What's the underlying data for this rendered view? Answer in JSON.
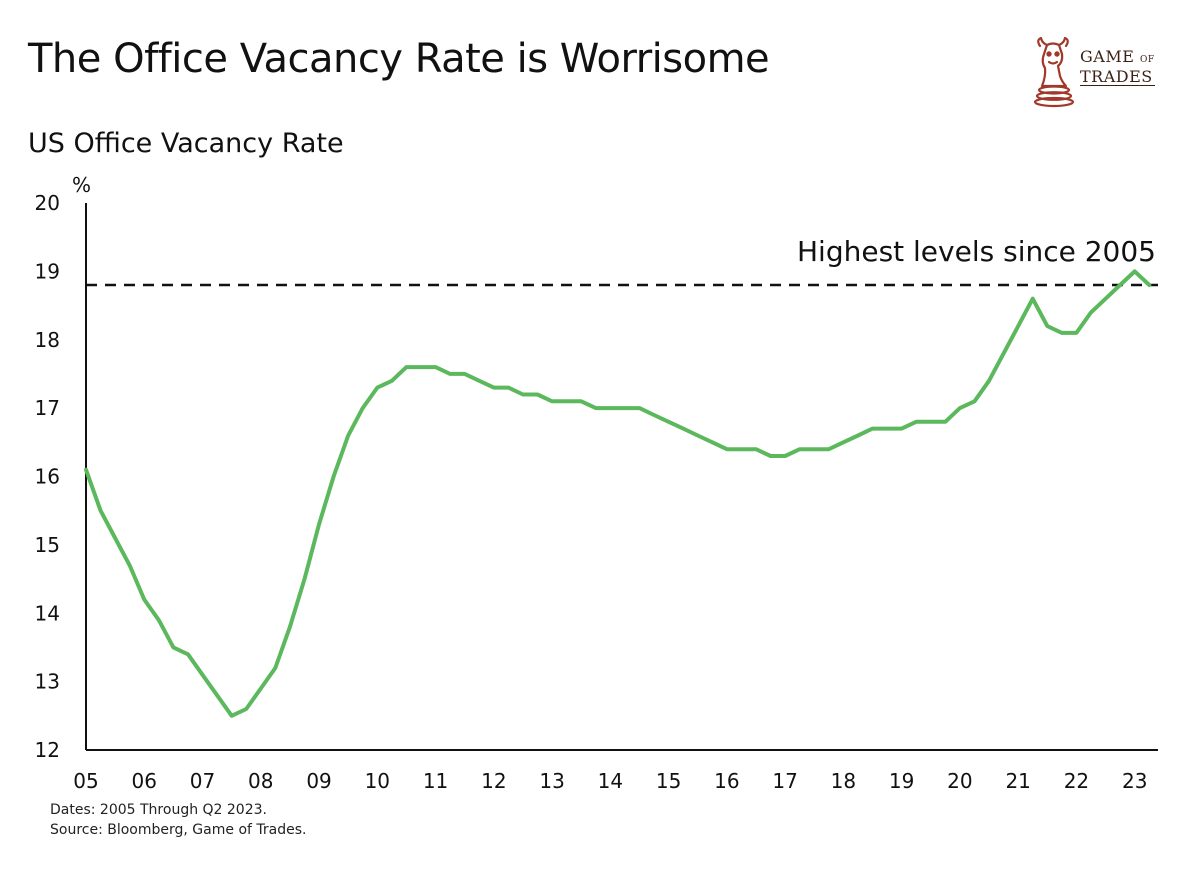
{
  "title": "The Office Vacancy Rate is Worrisome",
  "logo": {
    "line1": "Game",
    "line1_small": "of",
    "line2": "Trades",
    "icon": "bull-knight-icon"
  },
  "footnote": {
    "dates": "Dates: 2005 Through Q2 2023.",
    "source": "Source: Bloomberg, Game of Trades."
  },
  "colors": {
    "line": "#5cb85c",
    "axis": "#111111",
    "logo": "#a0392a"
  },
  "chart_data": {
    "type": "line",
    "title": "US Office Vacancy Rate",
    "ylabel": "%",
    "xlabel": "",
    "ylim": [
      12,
      20
    ],
    "xlim": [
      2005.0,
      2023.4
    ],
    "yticks": [
      12,
      13,
      14,
      15,
      16,
      17,
      18,
      19,
      20
    ],
    "xticks": [
      {
        "value": 2005,
        "label": "05"
      },
      {
        "value": 2006,
        "label": "06"
      },
      {
        "value": 2007,
        "label": "07"
      },
      {
        "value": 2008,
        "label": "08"
      },
      {
        "value": 2009,
        "label": "09"
      },
      {
        "value": 2010,
        "label": "10"
      },
      {
        "value": 2011,
        "label": "11"
      },
      {
        "value": 2012,
        "label": "12"
      },
      {
        "value": 2013,
        "label": "13"
      },
      {
        "value": 2014,
        "label": "14"
      },
      {
        "value": 2015,
        "label": "15"
      },
      {
        "value": 2016,
        "label": "16"
      },
      {
        "value": 2017,
        "label": "17"
      },
      {
        "value": 2018,
        "label": "18"
      },
      {
        "value": 2019,
        "label": "19"
      },
      {
        "value": 2020,
        "label": "20"
      },
      {
        "value": 2021,
        "label": "21"
      },
      {
        "value": 2022,
        "label": "22"
      },
      {
        "value": 2023,
        "label": "23"
      }
    ],
    "reference_line": {
      "value": 18.8,
      "style": "dashed",
      "label": "Highest levels since 2005"
    },
    "series": [
      {
        "name": "US Office Vacancy Rate",
        "x": [
          2005.0,
          2005.25,
          2005.5,
          2005.75,
          2006.0,
          2006.25,
          2006.5,
          2006.75,
          2007.0,
          2007.25,
          2007.5,
          2007.75,
          2008.0,
          2008.25,
          2008.5,
          2008.75,
          2009.0,
          2009.25,
          2009.5,
          2009.75,
          2010.0,
          2010.25,
          2010.5,
          2010.75,
          2011.0,
          2011.25,
          2011.5,
          2011.75,
          2012.0,
          2012.25,
          2012.5,
          2012.75,
          2013.0,
          2013.25,
          2013.5,
          2013.75,
          2014.0,
          2014.25,
          2014.5,
          2014.75,
          2015.0,
          2015.25,
          2015.5,
          2015.75,
          2016.0,
          2016.25,
          2016.5,
          2016.75,
          2017.0,
          2017.25,
          2017.5,
          2017.75,
          2018.0,
          2018.25,
          2018.5,
          2018.75,
          2019.0,
          2019.25,
          2019.5,
          2019.75,
          2020.0,
          2020.25,
          2020.5,
          2020.75,
          2021.0,
          2021.25,
          2021.5,
          2021.75,
          2022.0,
          2022.25,
          2022.5,
          2022.75,
          2023.0,
          2023.25
        ],
        "values": [
          16.1,
          15.5,
          15.1,
          14.7,
          14.2,
          13.9,
          13.5,
          13.4,
          13.1,
          12.8,
          12.5,
          12.6,
          12.9,
          13.2,
          13.8,
          14.5,
          15.3,
          16.0,
          16.6,
          17.0,
          17.3,
          17.4,
          17.6,
          17.6,
          17.6,
          17.5,
          17.5,
          17.4,
          17.3,
          17.3,
          17.2,
          17.2,
          17.1,
          17.1,
          17.1,
          17.0,
          17.0,
          17.0,
          17.0,
          16.9,
          16.8,
          16.7,
          16.6,
          16.5,
          16.4,
          16.4,
          16.4,
          16.3,
          16.3,
          16.4,
          16.4,
          16.4,
          16.5,
          16.6,
          16.7,
          16.7,
          16.7,
          16.8,
          16.8,
          16.8,
          17.0,
          17.1,
          17.4,
          17.8,
          18.2,
          18.6,
          18.2,
          18.1,
          18.1,
          18.4,
          18.6,
          18.8,
          19.0,
          18.8
        ]
      }
    ]
  }
}
